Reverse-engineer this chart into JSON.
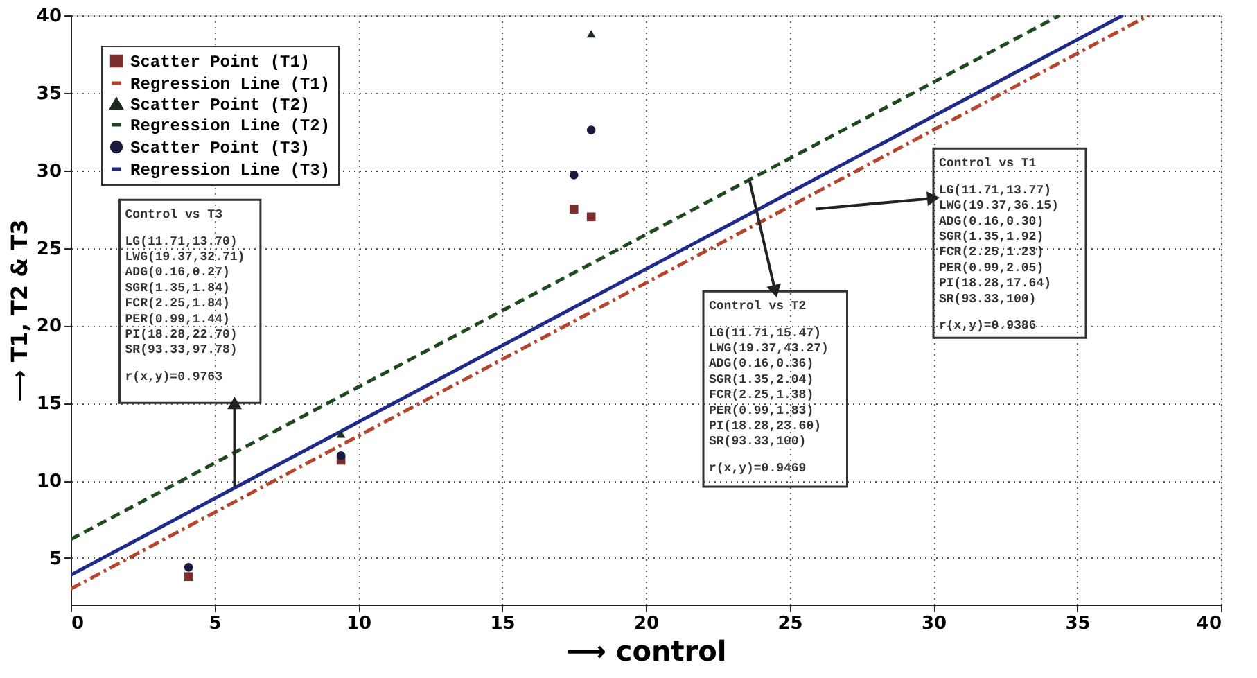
{
  "chart_data": {
    "type": "scatter",
    "xlabel": "⟶ control",
    "ylabel": "⟶ T1, T2 & T3",
    "xlim": [
      0,
      40
    ],
    "ylim": [
      2,
      40
    ],
    "xticks": [
      0,
      5,
      10,
      15,
      20,
      25,
      30,
      35,
      40
    ],
    "yticks": [
      5,
      10,
      15,
      20,
      25,
      30,
      35,
      40
    ],
    "grid": true,
    "legend": "top left",
    "series": [
      {
        "name": "Scatter Point (T1)",
        "marker": "square",
        "color": "#7a2e2e",
        "x": [
          4.1,
          9.4,
          17.5,
          18.1
        ],
        "values": [
          3.8,
          11.3,
          27.5,
          27.0
        ]
      },
      {
        "name": "Regression Line (T1)",
        "type": "line",
        "line_style": "dashdot",
        "color": "#b5462e",
        "x": [
          0,
          37.5
        ],
        "values": [
          3.0,
          40
        ]
      },
      {
        "name": "Scatter Point (T2)",
        "marker": "triangle",
        "color": "#1e2e1e",
        "x": [
          9.4,
          18.1
        ],
        "values": [
          13.0,
          38.8
        ]
      },
      {
        "name": "Regression Line (T2)",
        "type": "line",
        "line_style": "dashed",
        "color": "#1f4a1f",
        "x": [
          0,
          34.4
        ],
        "values": [
          6.2,
          40
        ]
      },
      {
        "name": "Scatter Point (T3)",
        "marker": "circle",
        "color": "#1a1a40",
        "x": [
          4.1,
          9.4,
          17.5,
          18.1
        ],
        "values": [
          4.4,
          11.6,
          29.7,
          32.6
        ]
      },
      {
        "name": "Regression Line (T3)",
        "type": "line",
        "line_style": "solid",
        "color": "#1f2a8a",
        "x": [
          0,
          36.6
        ],
        "values": [
          3.9,
          40
        ]
      }
    ],
    "annotations": [
      "Control vs T3",
      "LG(11.71,13.70)",
      "LWG(19.37,32.71)",
      "ADG(0.16,0.27)",
      "SGR(1.35,1.84)",
      "FCR(2.25,1.84)",
      "PER(0.99,1.44)",
      "PI(18.28,22.70)",
      "SR(93.33,97.78)",
      "r(x,y)=0.9763",
      "Control vs T2",
      "LG(11.71,15.47)",
      "LWG(19.37,43.27)",
      "ADG(0.16,0.36)",
      "SGR(1.35,2.04)",
      "FCR(2.25,1.38)",
      "PER(0.99,1.83)",
      "PI(18.28,23.60)",
      "SR(93.33,100)",
      "r(x,y)=0.9469",
      "Control vs T1",
      "LG(11.71,13.77)",
      "LWG(19.37,36.15)",
      "ADG(0.16,0.30)",
      "SGR(1.35,1.92)",
      "FCR(2.25,1.23)",
      "PER(0.99,2.05)",
      "PI(18.28,17.64)",
      "SR(93.33,100)",
      "r(x,y)=0.9386"
    ]
  }
}
